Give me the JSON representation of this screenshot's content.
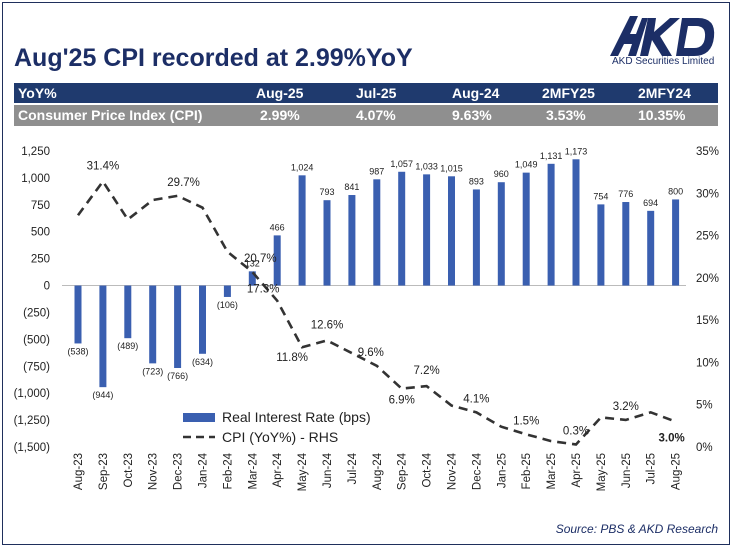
{
  "title": "Aug'25 CPI recorded at 2.99%YoY",
  "logo": {
    "text": "AKD",
    "subtitle": "AKD Securities Limited"
  },
  "table": {
    "header": [
      "YoY%",
      "Aug-25",
      "Jul-25",
      "Aug-24",
      "2MFY25",
      "2MFY24"
    ],
    "row": [
      "Consumer Price Index (CPI)",
      "2.99%",
      "4.07%",
      "9.63%",
      "3.53%",
      "10.35%"
    ]
  },
  "source": "Source: PBS & AKD Research",
  "colors": {
    "navy": "#1c2e66",
    "bar": "#3a5fb0",
    "line": "#333333",
    "table_header": "#1f3a6e",
    "table_row": "#8f8f8f"
  },
  "chart_data": {
    "type": "bar",
    "categories": [
      "Aug-23",
      "Sep-23",
      "Oct-23",
      "Nov-23",
      "Dec-23",
      "Jan-24",
      "Feb-24",
      "Mar-24",
      "Apr-24",
      "May-24",
      "Jun-24",
      "Jul-24",
      "Aug-24",
      "Sep-24",
      "Oct-24",
      "Nov-24",
      "Dec-24",
      "Jan-25",
      "Feb-25",
      "Mar-25",
      "Apr-25",
      "May-25",
      "Jun-25",
      "Jul-25",
      "Aug-25"
    ],
    "series": [
      {
        "name": "Real Interest Rate (bps)",
        "type": "bar",
        "axis": "left",
        "values": [
          -538,
          -944,
          -489,
          -723,
          -766,
          -634,
          -106,
          132,
          466,
          1024,
          793,
          841,
          987,
          1057,
          1033,
          1015,
          893,
          960,
          1049,
          1131,
          1173,
          754,
          776,
          694,
          800
        ],
        "labels": [
          "(538)",
          "(944)",
          "(489)",
          "(723)",
          "(766)",
          "(634)",
          "(106)",
          "132",
          "466",
          "1,024",
          "793",
          "841",
          "987",
          "1,057",
          "1,033",
          "1,015",
          "893",
          "960",
          "1,049",
          "1,131",
          "1,173",
          "754",
          "776",
          "694",
          "800"
        ]
      },
      {
        "name": "CPI (YoY%) - RHS",
        "type": "line",
        "axis": "right",
        "dash": true,
        "values": [
          27.4,
          31.4,
          26.9,
          29.2,
          29.7,
          28.3,
          23.1,
          20.7,
          17.3,
          11.8,
          12.6,
          11.1,
          9.6,
          6.9,
          7.2,
          4.9,
          4.1,
          2.4,
          1.5,
          0.7,
          0.3,
          3.5,
          3.2,
          4.1,
          3.0
        ],
        "point_labels": [
          {
            "index": 1,
            "text": "31.4%"
          },
          {
            "index": 4,
            "text": "29.7%"
          },
          {
            "index": 7,
            "text": "20.7%"
          },
          {
            "index": 8,
            "text": "17.3%"
          },
          {
            "index": 9,
            "text": "11.8%"
          },
          {
            "index": 10,
            "text": "12.6%"
          },
          {
            "index": 12,
            "text": "9.6%"
          },
          {
            "index": 13,
            "text": "6.9%"
          },
          {
            "index": 14,
            "text": "7.2%"
          },
          {
            "index": 16,
            "text": "4.1%"
          },
          {
            "index": 18,
            "text": "1.5%"
          },
          {
            "index": 20,
            "text": "0.3%"
          },
          {
            "index": 22,
            "text": "3.2%"
          },
          {
            "index": 24,
            "text": "3.0%",
            "bold": true
          }
        ]
      }
    ],
    "y_left": {
      "min": -1500,
      "max": 1250,
      "ticks": [
        "1,250",
        "1,000",
        "750",
        "500",
        "250",
        "0",
        "(250)",
        "(500)",
        "(750)",
        "(1,000)",
        "(1,250)",
        "(1,500)"
      ]
    },
    "y_right": {
      "min": 0,
      "max": 35,
      "ticks": [
        "35%",
        "30%",
        "25%",
        "20%",
        "15%",
        "10%",
        "5%",
        "0%"
      ]
    },
    "legend": {
      "position": "bottom-left",
      "entries": [
        "Real Interest Rate (bps)",
        "CPI (YoY%) - RHS"
      ]
    },
    "grid": false
  }
}
